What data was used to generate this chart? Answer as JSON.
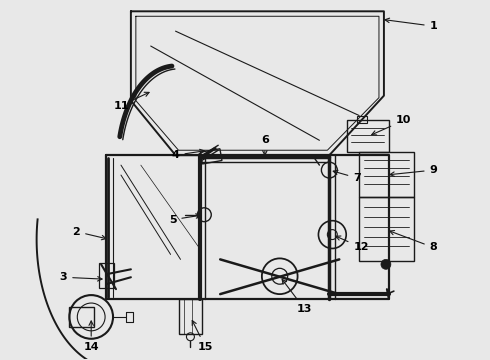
{
  "bg_color": "#e8e8e8",
  "line_color": "#1a1a1a",
  "label_color": "#000000",
  "figsize": [
    4.9,
    3.6
  ],
  "dpi": 100
}
